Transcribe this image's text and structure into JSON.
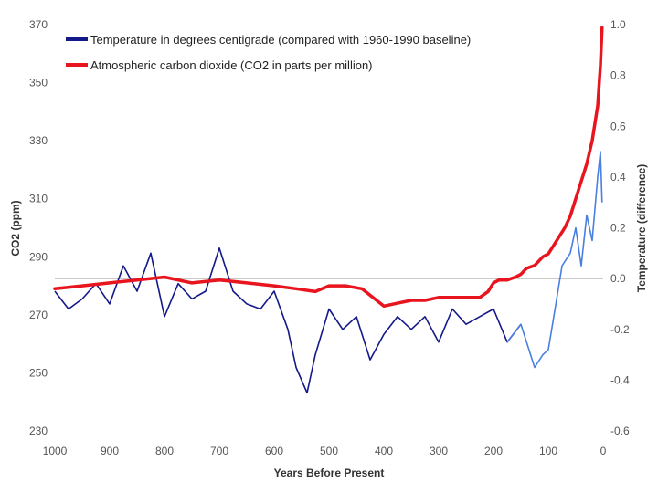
{
  "chart_data": {
    "type": "line",
    "xlabel": "Years Before Present",
    "ylabel_left": "CO2 (ppm)",
    "ylabel_right": "Temperature (difference)",
    "x_ticks": [
      1000,
      900,
      800,
      700,
      600,
      500,
      400,
      300,
      200,
      100,
      0
    ],
    "xlim": [
      1000,
      0
    ],
    "y_left_ticks": [
      230,
      250,
      270,
      290,
      310,
      330,
      350,
      370
    ],
    "ylim_left": [
      230,
      370
    ],
    "y_right_ticks": [
      "1.0",
      "0.8",
      "0.6",
      "0.4",
      "0.2",
      "0.0",
      "-0.2",
      "-0.4",
      "-0.6"
    ],
    "ylim_right": [
      -0.6,
      1.0
    ],
    "baseline_temperature": 0.0,
    "grid": false,
    "legend_position": "top-left",
    "colors": {
      "temperature_reconstructed": "#14198a",
      "temperature_instrumental": "#4a7fe0",
      "co2": "#e8141e",
      "baseline": "#aaaaaa"
    },
    "series": [
      {
        "name": "Temperature in degrees centigrade (compared with 1960-1990 baseline)",
        "axis": "right",
        "x": [
          1000,
          975,
          950,
          925,
          900,
          875,
          850,
          825,
          800,
          775,
          750,
          725,
          700,
          675,
          650,
          625,
          600,
          575,
          560,
          540,
          525,
          500,
          475,
          450,
          425,
          400,
          375,
          350,
          325,
          300,
          275,
          250,
          225,
          200,
          175,
          150,
          125,
          110,
          100,
          90,
          75,
          60,
          50,
          40,
          30,
          20,
          10,
          5,
          2
        ],
        "y": [
          -0.05,
          -0.12,
          -0.08,
          -0.02,
          -0.1,
          0.05,
          -0.05,
          0.1,
          -0.15,
          -0.02,
          -0.08,
          -0.05,
          0.12,
          -0.05,
          -0.1,
          -0.12,
          -0.05,
          -0.2,
          -0.35,
          -0.45,
          -0.3,
          -0.12,
          -0.2,
          -0.15,
          -0.32,
          -0.22,
          -0.15,
          -0.2,
          -0.15,
          -0.25,
          -0.12,
          -0.18,
          -0.15,
          -0.12,
          -0.25,
          -0.18,
          -0.35,
          -0.3,
          -0.28,
          -0.15,
          0.05,
          0.1,
          0.2,
          0.05,
          0.25,
          0.15,
          0.4,
          0.5,
          0.3
        ]
      },
      {
        "name": "Atmospheric carbon dioxide (CO2 in parts per million)",
        "axis": "left",
        "x": [
          1000,
          950,
          900,
          850,
          800,
          750,
          700,
          650,
          600,
          560,
          525,
          500,
          470,
          440,
          420,
          400,
          375,
          350,
          325,
          300,
          275,
          250,
          225,
          210,
          200,
          190,
          175,
          160,
          150,
          140,
          125,
          110,
          100,
          90,
          80,
          70,
          60,
          50,
          40,
          30,
          20,
          10,
          5,
          2
        ],
        "y": [
          279,
          280,
          281,
          282,
          283,
          281,
          282,
          281,
          280,
          279,
          278,
          280,
          280,
          279,
          276,
          273,
          274,
          275,
          275,
          276,
          276,
          276,
          276,
          278,
          281,
          282,
          282,
          283,
          284,
          286,
          287,
          290,
          291,
          294,
          297,
          300,
          304,
          310,
          316,
          322,
          330,
          342,
          356,
          369
        ]
      }
    ]
  }
}
